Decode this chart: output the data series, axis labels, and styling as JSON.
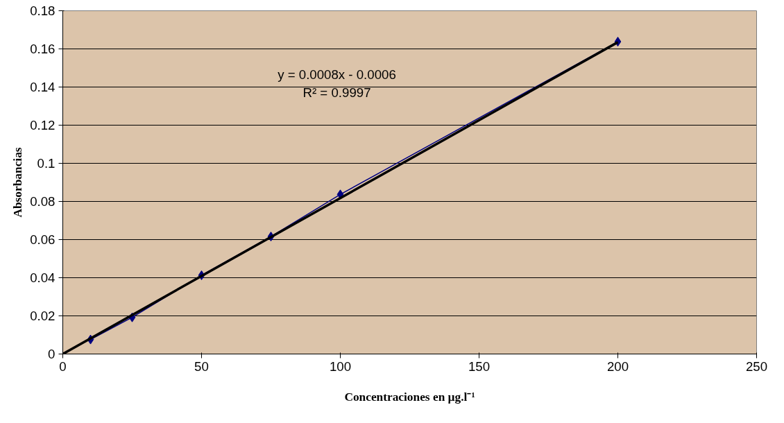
{
  "chart_data": {
    "type": "line",
    "xlabel": "Concentraciones en µg.l⁻¹",
    "ylabel": "Absorbancias",
    "x": [
      10,
      25,
      50,
      75,
      100,
      200
    ],
    "series": [
      {
        "color": "#000080",
        "marker": "diamond",
        "values": [
          0.0076,
          0.0192,
          0.0413,
          0.0616,
          0.0837,
          0.1638
        ]
      },
      {
        "color": "#000000",
        "marker": "none",
        "line_style": "solid",
        "x": [
          0,
          200
        ],
        "values": [
          0,
          0.1635
        ]
      }
    ],
    "annotations": [
      "y = 0.0008x - 0.0006",
      "R² = 0.9997"
    ],
    "xlim": [
      0,
      250
    ],
    "xticks": [
      0,
      50,
      100,
      150,
      200,
      250
    ],
    "ylim": [
      0,
      0.18
    ],
    "yticks": [
      0,
      0.02,
      0.04,
      0.06,
      0.08,
      0.1,
      0.12,
      0.14,
      0.16,
      0.18
    ],
    "grid": "y"
  }
}
